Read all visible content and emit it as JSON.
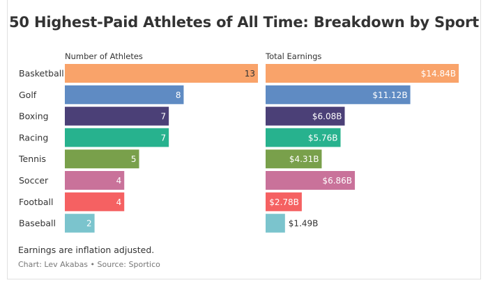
{
  "chart_data": {
    "type": "bar",
    "title": "50 Highest-Paid Athletes of All Time: Breakdown by Sport",
    "categories": [
      "Basketball",
      "Golf",
      "Boxing",
      "Racing",
      "Tennis",
      "Soccer",
      "Football",
      "Baseball"
    ],
    "colors": [
      "#f9a36a",
      "#5f8bc3",
      "#4b4077",
      "#27b28e",
      "#79a04b",
      "#c9729a",
      "#f56162",
      "#7bc4cd"
    ],
    "series": [
      {
        "name": "Number of Athletes",
        "values": [
          13,
          8,
          7,
          7,
          5,
          4,
          4,
          2
        ],
        "labels": [
          "13",
          "8",
          "7",
          "7",
          "5",
          "4",
          "4",
          "2"
        ],
        "xlim": [
          0,
          13
        ]
      },
      {
        "name": "Total Earnings",
        "values": [
          14.84,
          11.12,
          6.08,
          5.76,
          4.31,
          6.86,
          2.78,
          1.49
        ],
        "labels": [
          "$14.84B",
          "$11.12B",
          "$6.08B",
          "$5.76B",
          "$4.31B",
          "$6.86B",
          "$2.78B",
          "$1.49B"
        ],
        "xlim": [
          0,
          14.84
        ]
      }
    ]
  },
  "footer": {
    "note": "Earnings are inflation adjusted.",
    "credit_chart": "Chart: Lev Akabas",
    "credit_sep": " • ",
    "credit_source": "Source: Sportico"
  }
}
